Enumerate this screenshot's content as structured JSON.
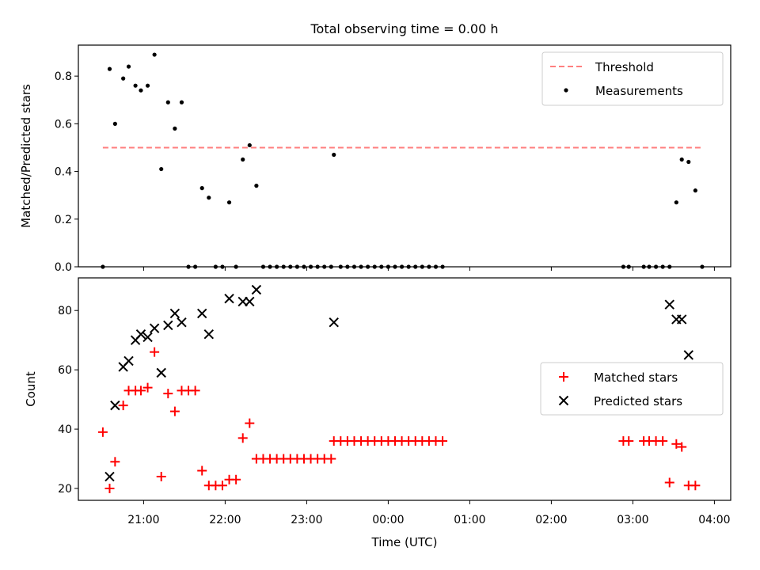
{
  "chart_data": [
    {
      "type": "scatter",
      "title": "Total observing time = 0.00 h",
      "xlabel": "",
      "ylabel": "Matched/Predicted stars",
      "xlim": [
        "20:12",
        "04:12"
      ],
      "ylim": [
        0,
        0.93
      ],
      "yticks": [
        "0.0",
        "0.2",
        "0.4",
        "0.6",
        "0.8"
      ],
      "grid": false,
      "legend_position": "top-right",
      "threshold": {
        "name": "Threshold",
        "y": 0.5,
        "x_range": [
          "20:30",
          "03:50"
        ],
        "color": "#ff7f7f"
      },
      "series": [
        {
          "name": "Measurements",
          "color": "#000000",
          "points": [
            [
              "20:30",
              0.0
            ],
            [
              "20:35",
              0.83
            ],
            [
              "20:39",
              0.6
            ],
            [
              "20:45",
              0.79
            ],
            [
              "20:49",
              0.84
            ],
            [
              "20:54",
              0.76
            ],
            [
              "20:58",
              0.74
            ],
            [
              "21:03",
              0.76
            ],
            [
              "21:08",
              0.89
            ],
            [
              "21:13",
              0.41
            ],
            [
              "21:18",
              0.69
            ],
            [
              "21:23",
              0.58
            ],
            [
              "21:28",
              0.69
            ],
            [
              "21:33",
              0.0
            ],
            [
              "21:38",
              0.0
            ],
            [
              "21:43",
              0.33
            ],
            [
              "21:48",
              0.29
            ],
            [
              "21:53",
              0.0
            ],
            [
              "21:58",
              0.0
            ],
            [
              "22:03",
              0.27
            ],
            [
              "22:08",
              0.0
            ],
            [
              "22:13",
              0.45
            ],
            [
              "22:18",
              0.51
            ],
            [
              "22:23",
              0.34
            ],
            [
              "22:28",
              0.0
            ],
            [
              "22:33",
              0.0
            ],
            [
              "22:38",
              0.0
            ],
            [
              "22:43",
              0.0
            ],
            [
              "22:48",
              0.0
            ],
            [
              "22:53",
              0.0
            ],
            [
              "22:58",
              0.0
            ],
            [
              "23:03",
              0.0
            ],
            [
              "23:08",
              0.0
            ],
            [
              "23:13",
              0.0
            ],
            [
              "23:18",
              0.0
            ],
            [
              "23:20",
              0.47
            ],
            [
              "23:25",
              0.0
            ],
            [
              "23:30",
              0.0
            ],
            [
              "23:35",
              0.0
            ],
            [
              "23:40",
              0.0
            ],
            [
              "23:45",
              0.0
            ],
            [
              "23:50",
              0.0
            ],
            [
              "23:55",
              0.0
            ],
            [
              "00:00",
              0.0
            ],
            [
              "00:05",
              0.0
            ],
            [
              "00:10",
              0.0
            ],
            [
              "00:15",
              0.0
            ],
            [
              "00:20",
              0.0
            ],
            [
              "00:25",
              0.0
            ],
            [
              "00:30",
              0.0
            ],
            [
              "00:35",
              0.0
            ],
            [
              "00:40",
              0.0
            ],
            [
              "02:53",
              0.0
            ],
            [
              "02:57",
              0.0
            ],
            [
              "03:08",
              0.0
            ],
            [
              "03:12",
              0.0
            ],
            [
              "03:17",
              0.0
            ],
            [
              "03:22",
              0.0
            ],
            [
              "03:27",
              0.0
            ],
            [
              "03:32",
              0.27
            ],
            [
              "03:36",
              0.45
            ],
            [
              "03:41",
              0.44
            ],
            [
              "03:46",
              0.32
            ],
            [
              "03:51",
              0.0
            ]
          ]
        }
      ]
    },
    {
      "type": "scatter",
      "title": "",
      "xlabel": "Time (UTC)",
      "ylabel": "Count",
      "xlim": [
        "20:12",
        "04:12"
      ],
      "ylim": [
        16,
        91
      ],
      "yticks": [
        "20",
        "40",
        "60",
        "80"
      ],
      "xticks": [
        "21:00",
        "22:00",
        "23:00",
        "00:00",
        "01:00",
        "02:00",
        "03:00",
        "04:00"
      ],
      "grid": false,
      "legend_position": "center-right",
      "series": [
        {
          "name": "Matched stars",
          "marker": "plus",
          "color": "#ff0000",
          "points": [
            [
              "20:30",
              39
            ],
            [
              "20:35",
              20
            ],
            [
              "20:39",
              29
            ],
            [
              "20:45",
              48
            ],
            [
              "20:49",
              53
            ],
            [
              "20:54",
              53
            ],
            [
              "20:58",
              53
            ],
            [
              "21:03",
              54
            ],
            [
              "21:08",
              66
            ],
            [
              "21:13",
              24
            ],
            [
              "21:18",
              52
            ],
            [
              "21:23",
              46
            ],
            [
              "21:28",
              53
            ],
            [
              "21:33",
              53
            ],
            [
              "21:38",
              53
            ],
            [
              "21:43",
              26
            ],
            [
              "21:48",
              21
            ],
            [
              "21:53",
              21
            ],
            [
              "21:58",
              21
            ],
            [
              "22:03",
              23
            ],
            [
              "22:08",
              23
            ],
            [
              "22:13",
              37
            ],
            [
              "22:18",
              42
            ],
            [
              "22:23",
              30
            ],
            [
              "22:28",
              30
            ],
            [
              "22:33",
              30
            ],
            [
              "22:38",
              30
            ],
            [
              "22:43",
              30
            ],
            [
              "22:48",
              30
            ],
            [
              "22:53",
              30
            ],
            [
              "22:58",
              30
            ],
            [
              "23:03",
              30
            ],
            [
              "23:08",
              30
            ],
            [
              "23:13",
              30
            ],
            [
              "23:18",
              30
            ],
            [
              "23:20",
              36
            ],
            [
              "23:25",
              36
            ],
            [
              "23:30",
              36
            ],
            [
              "23:35",
              36
            ],
            [
              "23:40",
              36
            ],
            [
              "23:45",
              36
            ],
            [
              "23:50",
              36
            ],
            [
              "23:55",
              36
            ],
            [
              "00:00",
              36
            ],
            [
              "00:05",
              36
            ],
            [
              "00:10",
              36
            ],
            [
              "00:15",
              36
            ],
            [
              "00:20",
              36
            ],
            [
              "00:25",
              36
            ],
            [
              "00:30",
              36
            ],
            [
              "00:35",
              36
            ],
            [
              "00:40",
              36
            ],
            [
              "02:53",
              36
            ],
            [
              "02:57",
              36
            ],
            [
              "03:08",
              36
            ],
            [
              "03:12",
              36
            ],
            [
              "03:17",
              36
            ],
            [
              "03:22",
              36
            ],
            [
              "03:27",
              22
            ],
            [
              "03:32",
              35
            ],
            [
              "03:36",
              34
            ],
            [
              "03:41",
              21
            ],
            [
              "03:46",
              21
            ]
          ]
        },
        {
          "name": "Predicted stars",
          "marker": "x",
          "color": "#000000",
          "points": [
            [
              "20:35",
              24
            ],
            [
              "20:39",
              48
            ],
            [
              "20:45",
              61
            ],
            [
              "20:49",
              63
            ],
            [
              "20:54",
              70
            ],
            [
              "20:58",
              72
            ],
            [
              "21:03",
              71
            ],
            [
              "21:08",
              74
            ],
            [
              "21:13",
              59
            ],
            [
              "21:18",
              75
            ],
            [
              "21:23",
              79
            ],
            [
              "21:28",
              76
            ],
            [
              "21:43",
              79
            ],
            [
              "21:48",
              72
            ],
            [
              "22:03",
              84
            ],
            [
              "22:13",
              83
            ],
            [
              "22:18",
              83
            ],
            [
              "22:23",
              87
            ],
            [
              "23:20",
              76
            ],
            [
              "03:27",
              82
            ],
            [
              "03:32",
              77
            ],
            [
              "03:36",
              77
            ],
            [
              "03:41",
              65
            ]
          ]
        }
      ]
    }
  ]
}
